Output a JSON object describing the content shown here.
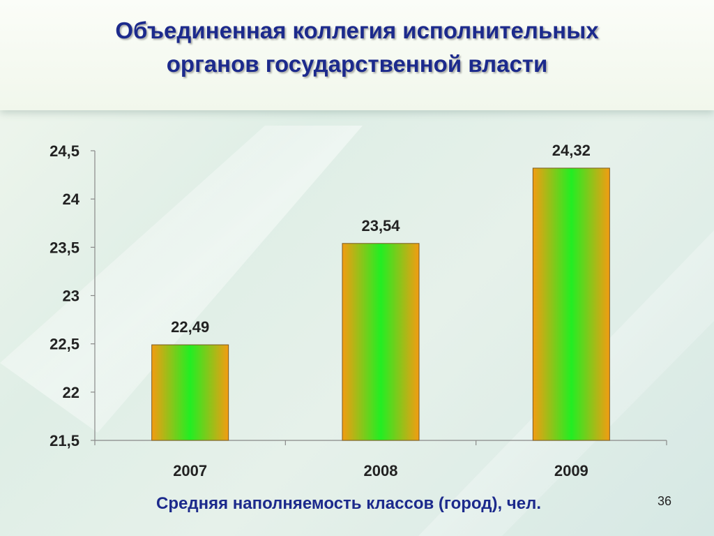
{
  "slide": {
    "title": "Объединенная коллегия исполнительных\nорганов государственной власти",
    "caption": "Средняя наполняемость классов (город), чел.",
    "page_number": "36"
  },
  "colors": {
    "title": "#1c2a8c",
    "bar_edge": "#f39c12",
    "bar_center": "#22ee22"
  },
  "chart_data": {
    "type": "bar",
    "title": "",
    "xlabel": "",
    "ylabel": "",
    "categories": [
      "2007",
      "2008",
      "2009"
    ],
    "values": [
      22.49,
      23.54,
      24.32
    ],
    "value_labels": [
      "22,49",
      "23,54",
      "24,32"
    ],
    "ylim": [
      21.5,
      24.5
    ],
    "yticks": [
      21.5,
      22,
      22.5,
      23,
      23.5,
      24,
      24.5
    ],
    "ytick_labels": [
      "21,5",
      "22",
      "22,5",
      "23",
      "23,5",
      "24",
      "24,5"
    ],
    "grid": false,
    "legend": "none"
  }
}
